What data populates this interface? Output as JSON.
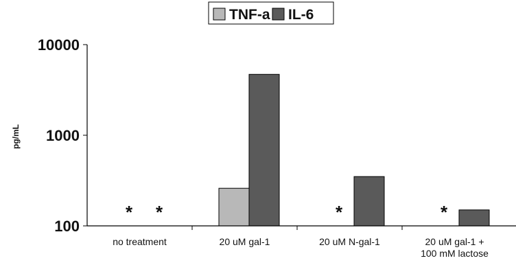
{
  "chart_data": {
    "type": "bar",
    "yscale": "log",
    "ylim": [
      100,
      10000
    ],
    "ylabel": "pg/mL",
    "xlabel": "",
    "title": "",
    "y_ticks": [
      "10000",
      "1000",
      "100"
    ],
    "grid": false,
    "legend_position": "top-center",
    "categories": [
      [
        "no treatment"
      ],
      [
        "20 uM gal-1"
      ],
      [
        "20 uM N-gal-1"
      ],
      [
        "20 uM gal-1 +",
        "100 mM lactose"
      ]
    ],
    "series": [
      {
        "name": "TNF-a",
        "color": "#b8b8b8",
        "values": [
          null,
          260,
          null,
          null
        ]
      },
      {
        "name": "IL-6",
        "color": "#5a5a5a",
        "values": [
          null,
          4700,
          350,
          150
        ]
      }
    ],
    "annotations": [
      {
        "text": "*",
        "category": 0,
        "series": 0
      },
      {
        "text": "*",
        "category": 0,
        "series": 1
      },
      {
        "text": "*",
        "category": 2,
        "series": 0
      },
      {
        "text": "*",
        "category": 3,
        "series": 0
      }
    ]
  }
}
